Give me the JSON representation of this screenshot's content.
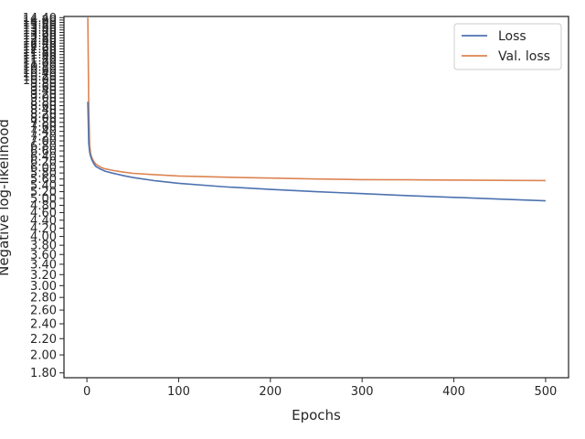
{
  "chart_data": {
    "type": "line",
    "title": "",
    "xlabel": "Epochs",
    "ylabel": "Negative log-likelihood",
    "xlim": [
      -25,
      525
    ],
    "ylim": [
      1.75,
      14.5
    ],
    "yscale": "log",
    "xticks": [
      0,
      100,
      200,
      300,
      400,
      500
    ],
    "yticks": [
      1.8,
      2.0,
      2.2,
      2.4,
      2.6,
      2.8,
      3.0,
      3.2,
      3.4,
      3.6,
      3.8,
      4.0,
      4.2,
      4.4,
      4.6,
      4.8,
      5.0,
      5.2,
      5.4,
      5.6,
      5.8,
      6.0,
      6.2,
      6.4,
      6.6,
      6.8,
      7.0,
      7.2,
      7.4,
      7.6,
      7.8,
      8.0,
      8.2,
      8.4,
      8.6,
      8.8,
      9.0,
      9.2,
      9.4,
      9.6,
      9.8,
      10.0,
      10.2,
      10.4,
      10.6,
      10.8,
      11.0,
      11.2,
      11.4,
      11.6,
      11.8,
      12.0,
      12.2,
      12.4,
      12.6,
      12.8,
      13.0,
      13.2,
      13.4,
      13.6,
      13.8,
      14.0,
      14.2,
      14.4
    ],
    "ytick_labels": [
      "1.80",
      "2.00",
      "2.20",
      "2.40",
      "2.60",
      "2.80",
      "3.00",
      "3.20",
      "3.40",
      "3.60",
      "3.80",
      "4.00",
      "4.20",
      "4.40",
      "4.60",
      "4.80",
      "5.00",
      "5.20",
      "5.40",
      "5.60",
      "5.80",
      "6.00",
      "6.20",
      "6.40",
      "6.60",
      "6.80",
      "7.00",
      "7.20",
      "7.40",
      "7.60",
      "7.80",
      "8.00",
      "8.20",
      "8.40",
      "8.60",
      "8.80",
      "9.00",
      "9.20",
      "9.40",
      "9.60",
      "9.80",
      "10.00",
      "10.20",
      "10.40",
      "10.60",
      "10.80",
      "11.00",
      "11.20",
      "11.40",
      "11.60",
      "11.80",
      "12.00",
      "12.20",
      "12.40",
      "12.60",
      "12.80",
      "13.00",
      "13.20",
      "13.40",
      "13.60",
      "13.80",
      "14.00",
      "14.20",
      "14.40"
    ],
    "grid": false,
    "legend": "top-right",
    "series": [
      {
        "name": "Loss",
        "color": "#4c72b0",
        "x": [
          1,
          2,
          3,
          4,
          5,
          6,
          8,
          10,
          15,
          20,
          30,
          40,
          50,
          75,
          100,
          150,
          200,
          250,
          300,
          350,
          400,
          450,
          500
        ],
        "y": [
          8.8,
          6.9,
          6.55,
          6.4,
          6.3,
          6.22,
          6.1,
          6.02,
          5.93,
          5.86,
          5.78,
          5.71,
          5.65,
          5.54,
          5.46,
          5.35,
          5.27,
          5.2,
          5.14,
          5.08,
          5.03,
          4.98,
          4.93
        ]
      },
      {
        "name": "Val. loss",
        "color": "#dd8452",
        "x": [
          1,
          2,
          3,
          4,
          5,
          6,
          8,
          10,
          15,
          20,
          30,
          40,
          50,
          75,
          100,
          150,
          200,
          250,
          300,
          350,
          400,
          450,
          500
        ],
        "y": [
          14.4,
          8.5,
          6.8,
          6.5,
          6.38,
          6.3,
          6.18,
          6.1,
          6.0,
          5.94,
          5.88,
          5.83,
          5.79,
          5.74,
          5.7,
          5.66,
          5.63,
          5.6,
          5.58,
          5.575,
          5.565,
          5.555,
          5.55
        ]
      }
    ]
  }
}
